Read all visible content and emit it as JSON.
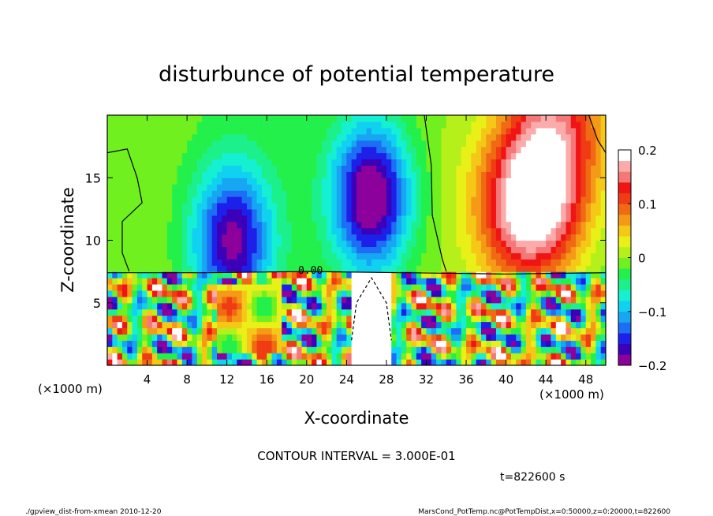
{
  "chart_data": {
    "type": "heatmap",
    "title": "disturbunce of potential temperature",
    "xlabel": "X-coordinate",
    "ylabel": "Z-coordinate",
    "x_unit_left": "(×1000 m)",
    "x_unit_right": "(×1000 m)",
    "xlim": [
      0,
      50
    ],
    "ylim": [
      0,
      20
    ],
    "x_ticks": [
      4,
      8,
      12,
      16,
      20,
      24,
      28,
      32,
      36,
      40,
      44,
      48
    ],
    "x_tick_labels": [
      "4",
      "8",
      "12",
      "16",
      "20",
      "24",
      "28",
      "32",
      "36",
      "40",
      "44",
      "48"
    ],
    "y_ticks": [
      5,
      10,
      15
    ],
    "y_tick_labels": [
      "5",
      "10",
      "15"
    ],
    "colorbar": {
      "min": -0.2,
      "max": 0.2,
      "ticks": [
        0.2,
        0.1,
        0,
        -0.1,
        -0.2
      ],
      "tick_labels": [
        "0.2",
        "0.1",
        "0",
        "−0.1",
        "−0.2"
      ],
      "colors": [
        "#8c009c",
        "#3c00b8",
        "#1c20e8",
        "#1c6ef5",
        "#17a6f2",
        "#10d2f0",
        "#15f0d2",
        "#1cf08a",
        "#23f04b",
        "#70f01e",
        "#b6f01a",
        "#e8f018",
        "#f5c817",
        "#f59a17",
        "#f06a14",
        "#f03c14",
        "#f01414",
        "#f57878",
        "#fcaaaa",
        "#ffffff"
      ]
    },
    "contour_interval_text": "CONTOUR INTERVAL = 3.000E-01",
    "contour_label": "0.00",
    "time_text": "t=822600 s",
    "features": [
      {
        "sign": "negative",
        "x": 12.5,
        "z": 10,
        "amplitude": -0.18
      },
      {
        "sign": "negative",
        "x": 26.5,
        "z": 13.5,
        "amplitude": -0.22
      },
      {
        "sign": "positive",
        "x": 42.5,
        "z": 12.5,
        "amplitude": 0.24
      },
      {
        "sign": "positive",
        "x": 45,
        "z": 19,
        "amplitude": 0.15
      }
    ]
  },
  "footer": {
    "left": "./gpview_dist-from-xmean  2010-12-20",
    "right": "MarsCond_PotTemp.nc@PotTempDist,x=0:50000,z=0:20000,t=822600"
  },
  "colors": {
    "frame": "#000000",
    "background": "#ffffff"
  }
}
